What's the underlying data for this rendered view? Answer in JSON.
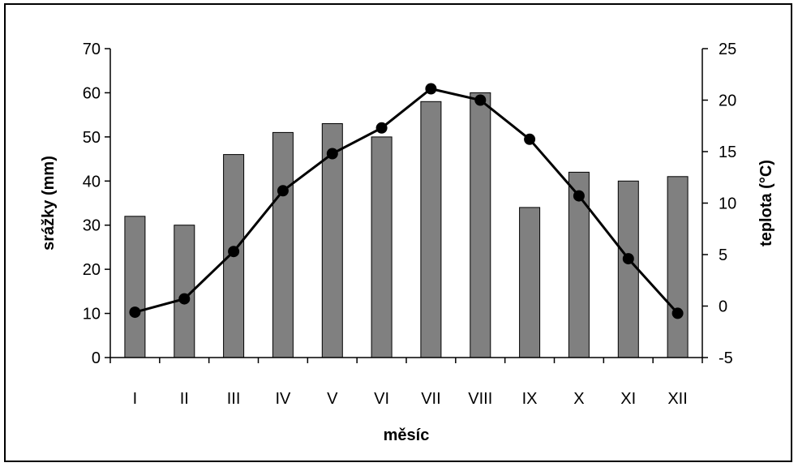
{
  "chart_data": {
    "type": "bar",
    "title": "",
    "xlabel": "měsíc",
    "ylabel": "srážky (mm)",
    "y2label": "teplota (°C)",
    "categories": [
      "I",
      "II",
      "III",
      "IV",
      "V",
      "VI",
      "VII",
      "VIII",
      "IX",
      "X",
      "XI",
      "XII"
    ],
    "series": [
      {
        "type": "bar",
        "axis": "left",
        "color": "#808080",
        "values": [
          32,
          30,
          46,
          51,
          53,
          50,
          58,
          60,
          34,
          42,
          40,
          41
        ]
      },
      {
        "type": "line",
        "axis": "right",
        "color": "#000000",
        "values": [
          -0.6,
          0.7,
          5.3,
          11.2,
          14.8,
          17.3,
          21.1,
          20.0,
          16.2,
          10.7,
          4.6,
          -0.7
        ]
      }
    ],
    "ylim": [
      0,
      70
    ],
    "y_ticks": [
      0,
      10,
      20,
      30,
      40,
      50,
      60,
      70
    ],
    "y2lim": [
      -5,
      25
    ],
    "y2_ticks": [
      -5,
      0,
      5,
      10,
      15,
      20,
      25
    ],
    "grid": false,
    "legend": "none"
  }
}
